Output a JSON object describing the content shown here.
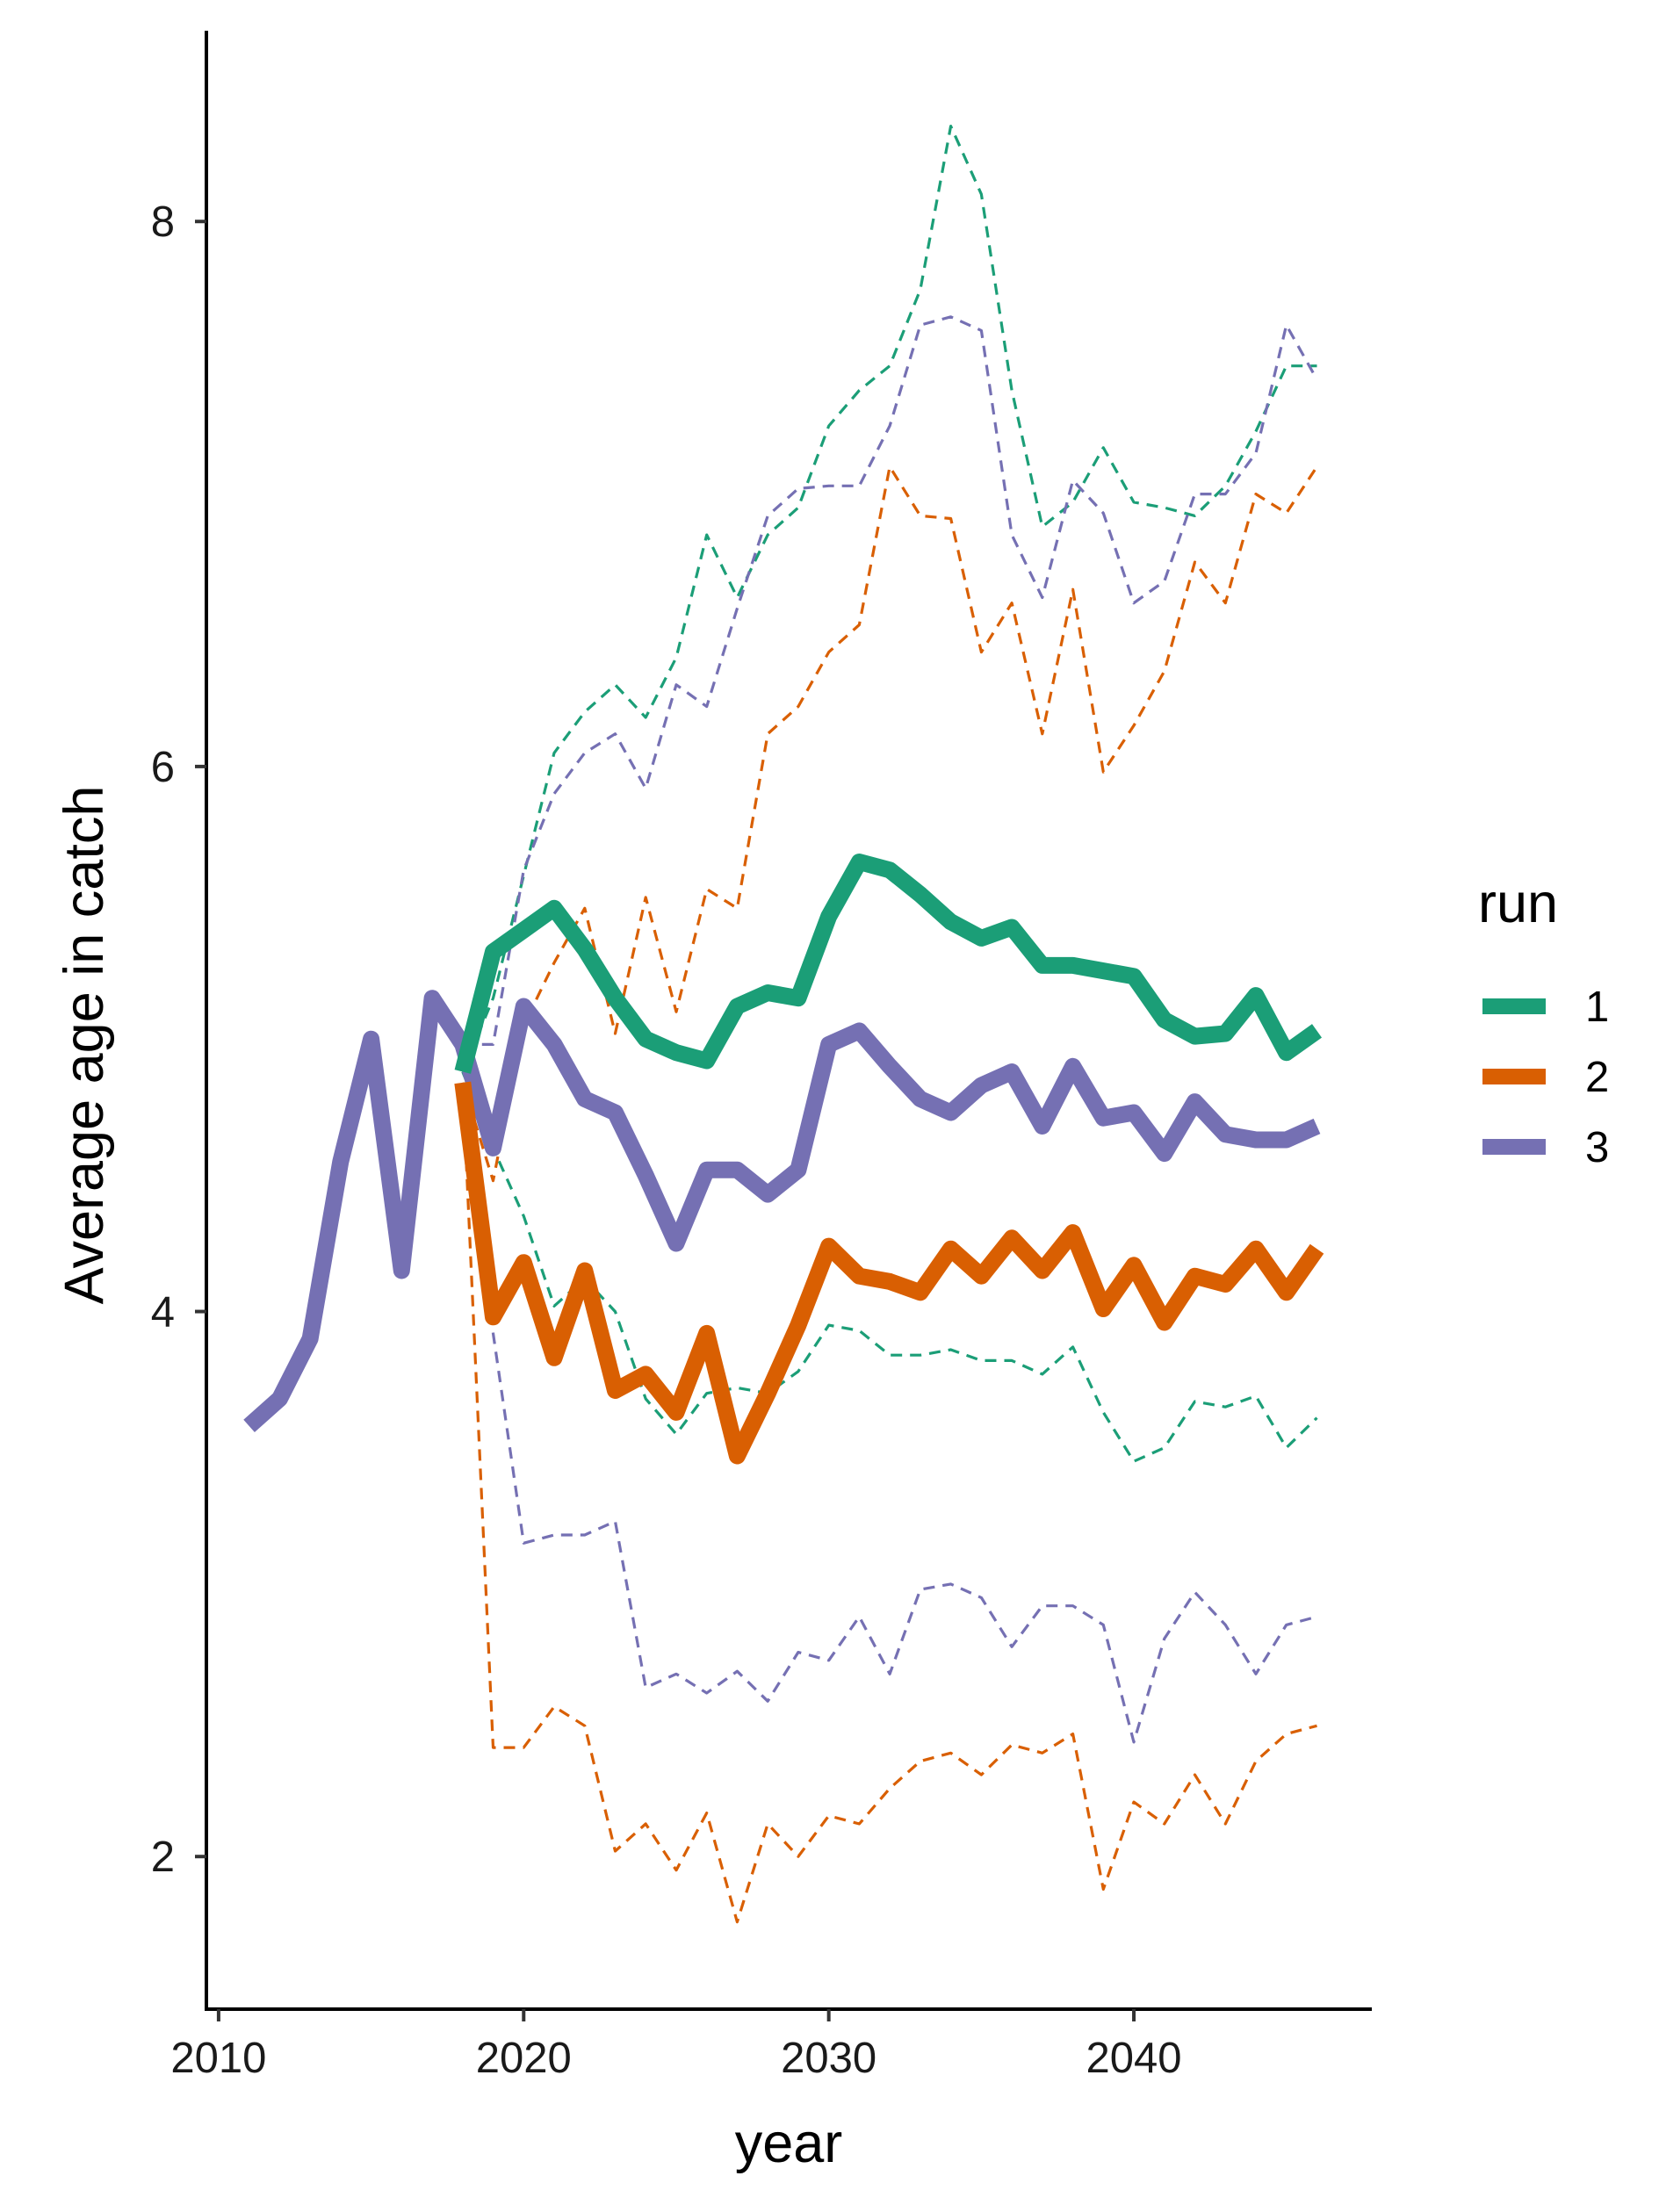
{
  "chart_data": {
    "type": "line",
    "xlabel": "year",
    "ylabel": "Average age in catch",
    "xlim": [
      2009.6,
      2047.8
    ],
    "ylim": [
      1.44,
      8.7
    ],
    "x_ticks": [
      2010,
      2020,
      2030,
      2040
    ],
    "y_ticks": [
      2,
      4,
      6,
      8
    ],
    "grid": false,
    "legend": {
      "title": "run",
      "position": "right",
      "entries": [
        {
          "label": "1",
          "color": "#1b9e77"
        },
        {
          "label": "2",
          "color": "#d95f02"
        },
        {
          "label": "3",
          "color": "#7570b3"
        }
      ]
    },
    "series": [
      {
        "name": "1",
        "color": "#1b9e77",
        "x": [
          2018,
          2019,
          2020,
          2021,
          2022,
          2023,
          2024,
          2025,
          2026,
          2027,
          2028,
          2029,
          2030,
          2031,
          2032,
          2033,
          2034,
          2035,
          2036,
          2037,
          2038,
          2039,
          2040,
          2041,
          2042,
          2043,
          2044,
          2045,
          2046
        ],
        "median": [
          4.88,
          5.32,
          5.4,
          5.48,
          5.33,
          5.15,
          5.0,
          4.95,
          4.92,
          5.12,
          5.17,
          5.15,
          5.45,
          5.65,
          5.62,
          5.53,
          5.43,
          5.37,
          5.41,
          5.27,
          5.27,
          5.25,
          5.23,
          5.07,
          5.01,
          5.02,
          5.16,
          4.95,
          5.03
        ],
        "upper": [
          4.88,
          5.15,
          5.6,
          6.05,
          6.2,
          6.3,
          6.18,
          6.4,
          6.85,
          6.62,
          6.85,
          6.95,
          7.25,
          7.38,
          7.47,
          7.75,
          8.35,
          8.1,
          7.38,
          6.88,
          6.97,
          7.17,
          6.97,
          6.95,
          6.92,
          7.03,
          7.23,
          7.47,
          7.47
        ],
        "lower": [
          4.88,
          4.6,
          4.35,
          4.02,
          4.12,
          4.0,
          3.68,
          3.55,
          3.7,
          3.72,
          3.7,
          3.78,
          3.95,
          3.93,
          3.84,
          3.84,
          3.86,
          3.82,
          3.82,
          3.77,
          3.87,
          3.63,
          3.45,
          3.5,
          3.67,
          3.65,
          3.69,
          3.5,
          3.61
        ]
      },
      {
        "name": "2",
        "color": "#d95f02",
        "x": [
          2018,
          2019,
          2020,
          2021,
          2022,
          2023,
          2024,
          2025,
          2026,
          2027,
          2028,
          2029,
          2030,
          2031,
          2032,
          2033,
          2034,
          2035,
          2036,
          2037,
          2038,
          2039,
          2040,
          2041,
          2042,
          2043,
          2044,
          2045,
          2046
        ],
        "median": [
          4.84,
          3.98,
          4.18,
          3.83,
          4.15,
          3.71,
          3.77,
          3.63,
          3.92,
          3.47,
          3.7,
          3.95,
          4.24,
          4.13,
          4.11,
          4.07,
          4.23,
          4.13,
          4.27,
          4.15,
          4.29,
          4.01,
          4.17,
          3.96,
          4.13,
          4.1,
          4.23,
          4.07,
          4.23
        ],
        "upper": [
          4.84,
          4.48,
          5.05,
          5.28,
          5.48,
          5.02,
          5.52,
          5.1,
          5.55,
          5.48,
          6.12,
          6.22,
          6.42,
          6.52,
          7.1,
          6.92,
          6.91,
          6.42,
          6.6,
          6.12,
          6.65,
          5.98,
          6.15,
          6.35,
          6.75,
          6.6,
          7.0,
          6.93,
          7.1
        ],
        "lower": [
          4.84,
          2.4,
          2.4,
          2.55,
          2.48,
          2.02,
          2.12,
          1.95,
          2.16,
          1.76,
          2.12,
          2.0,
          2.15,
          2.12,
          2.25,
          2.35,
          2.38,
          2.3,
          2.41,
          2.38,
          2.45,
          1.88,
          2.2,
          2.12,
          2.3,
          2.12,
          2.35,
          2.45,
          2.48
        ]
      },
      {
        "name": "3",
        "color": "#7570b3",
        "x": [
          2011,
          2012,
          2013,
          2014,
          2015,
          2016,
          2017,
          2018,
          2019,
          2020,
          2021,
          2022,
          2023,
          2024,
          2025,
          2026,
          2027,
          2028,
          2029,
          2030,
          2031,
          2032,
          2033,
          2034,
          2035,
          2036,
          2037,
          2038,
          2039,
          2040,
          2041,
          2042,
          2043,
          2044,
          2045,
          2046
        ],
        "median": [
          3.58,
          3.68,
          3.9,
          4.55,
          5.0,
          4.15,
          5.15,
          4.98,
          4.6,
          5.12,
          4.98,
          4.78,
          4.73,
          4.5,
          4.25,
          4.52,
          4.52,
          4.43,
          4.52,
          4.98,
          5.03,
          4.9,
          4.78,
          4.73,
          4.83,
          4.88,
          4.68,
          4.9,
          4.71,
          4.73,
          4.58,
          4.77,
          4.65,
          4.63,
          4.63,
          4.68
        ],
        "upper": [
          null,
          null,
          null,
          null,
          null,
          null,
          null,
          4.98,
          4.98,
          5.62,
          5.9,
          6.05,
          6.12,
          5.92,
          6.3,
          6.22,
          6.58,
          6.92,
          7.02,
          7.03,
          7.03,
          7.25,
          7.62,
          7.65,
          7.6,
          6.85,
          6.62,
          7.05,
          6.93,
          6.6,
          6.68,
          7.0,
          7.0,
          7.15,
          7.62,
          7.42
        ],
        "lower": [
          null,
          null,
          null,
          null,
          null,
          null,
          null,
          4.98,
          3.92,
          3.15,
          3.18,
          3.18,
          3.23,
          2.62,
          2.67,
          2.6,
          2.68,
          2.57,
          2.75,
          2.72,
          2.88,
          2.67,
          2.98,
          3.0,
          2.95,
          2.77,
          2.92,
          2.92,
          2.85,
          2.42,
          2.8,
          2.97,
          2.85,
          2.67,
          2.85,
          2.88
        ]
      }
    ]
  }
}
